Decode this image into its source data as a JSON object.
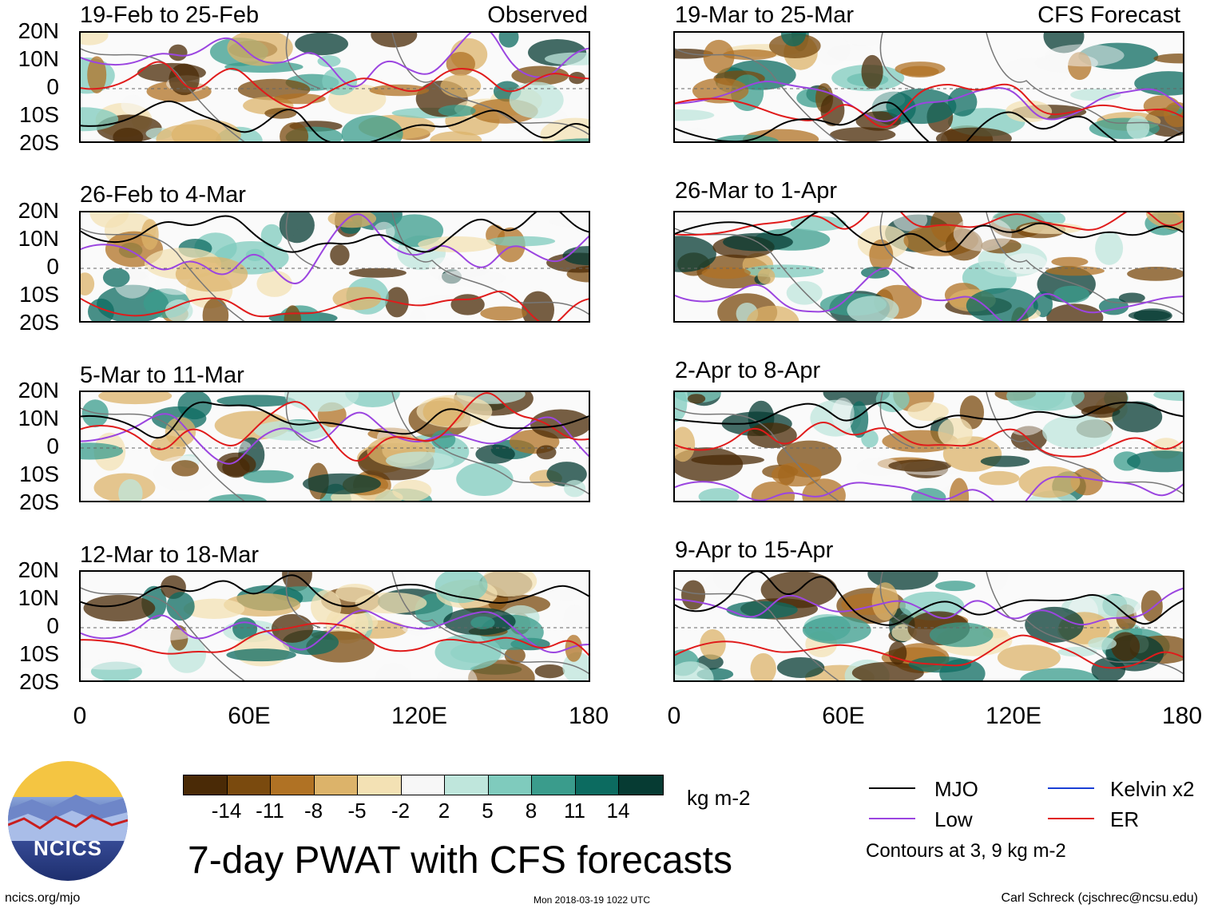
{
  "chart_data": {
    "type": "heatmap",
    "title": "7-day PWAT with CFS forecasts",
    "units": "kg m-2",
    "x_ticks": [
      "0",
      "60E",
      "120E",
      "180"
    ],
    "y_ticks": [
      "20N",
      "10N",
      "0",
      "10S",
      "20S"
    ],
    "xlim": [
      0,
      180
    ],
    "ylim": [
      -20,
      20
    ],
    "columns": [
      {
        "tag": "Observed",
        "panels": [
          "19-Feb to 25-Feb",
          "26-Feb to 4-Mar",
          "5-Mar to 11-Mar",
          "12-Mar to 18-Mar"
        ]
      },
      {
        "tag": "CFS Forecast",
        "panels": [
          "19-Mar to 25-Mar",
          "26-Mar to 1-Apr",
          "2-Apr to 8-Apr",
          "9-Apr to 15-Apr"
        ]
      }
    ],
    "colorbar": {
      "labels": [
        "-14",
        "-11",
        "-8",
        "-5",
        "-2",
        "2",
        "5",
        "8",
        "11",
        "14"
      ],
      "colors": [
        "#4a2a06",
        "#7a4a0e",
        "#b07224",
        "#dcb36a",
        "#f3e1b4",
        "#f7f7f7",
        "#bfe6dc",
        "#7fcbbd",
        "#3a9c8c",
        "#0c6b60",
        "#063b33"
      ]
    },
    "legend": [
      {
        "label": "MJO",
        "color": "#000000"
      },
      {
        "label": "Kelvin x2",
        "color": "#1a3fd6"
      },
      {
        "label": "Low",
        "color": "#9b45e0"
      },
      {
        "label": "ER",
        "color": "#e01b1b"
      }
    ],
    "contours_note": "Contours at 3, 9 kg m-2"
  },
  "header": {
    "logo_text": "NCICS"
  },
  "footer": {
    "left": "ncics.org/mjo",
    "middle": "Mon 2018-03-19 1022 UTC",
    "right": "Carl Schreck (cjschrec@ncsu.edu)"
  }
}
